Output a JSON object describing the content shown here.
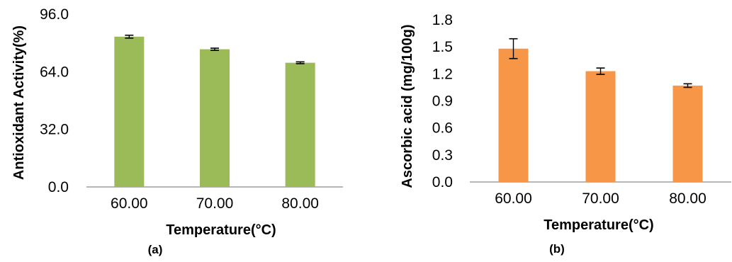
{
  "chart_data": [
    {
      "type": "bar",
      "panel_label": "(a)",
      "categories": [
        "60.00",
        "70.00",
        "80.00"
      ],
      "values": [
        83.5,
        76.5,
        69.0
      ],
      "errors": [
        0.8,
        0.6,
        0.5
      ],
      "xlabel": "Temperature(°C)",
      "ylabel": "Antioxidant Activity(%)",
      "ylim": [
        0,
        96
      ],
      "yticks": [
        "0.0",
        "32.0",
        "64.0",
        "96.0"
      ],
      "yticks_values": [
        0,
        32,
        64,
        96
      ],
      "grid": false,
      "bar_color": "#9BBB59"
    },
    {
      "type": "bar",
      "panel_label": "(b)",
      "categories": [
        "60.00",
        "70.00",
        "80.00"
      ],
      "values": [
        1.48,
        1.23,
        1.07
      ],
      "errors": [
        0.11,
        0.035,
        0.02
      ],
      "xlabel": "Temperature(°C)",
      "ylabel": "Ascorbic acid (mg/100g)",
      "ylim": [
        0,
        1.8
      ],
      "yticks": [
        "0.0",
        "0.3",
        "0.6",
        "0.9",
        "1.2",
        "1.5",
        "1.8"
      ],
      "yticks_values": [
        0,
        0.3,
        0.6,
        0.9,
        1.2,
        1.5,
        1.8
      ],
      "grid": false,
      "bar_color": "#F79646"
    }
  ]
}
